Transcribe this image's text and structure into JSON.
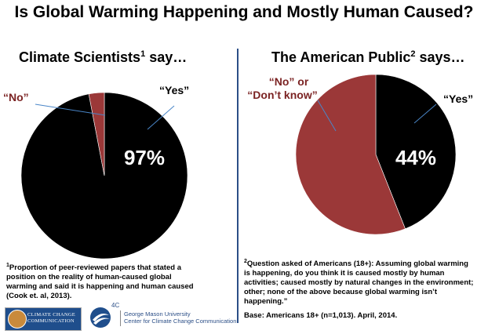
{
  "title": "Is Global Warming Happening and Mostly Human Caused?",
  "left": {
    "heading_pre": "Climate Scientists",
    "heading_sup": "1",
    "heading_post": " say…",
    "label_no": "“No”",
    "label_yes": "“Yes”",
    "value_text": "97%"
  },
  "right": {
    "heading_pre": "The American Public",
    "heading_sup": "2",
    "heading_post": " says…",
    "label_no_1": "“No” or",
    "label_no_2": "“Don’t know”",
    "label_yes": "“Yes”",
    "value_text": "44%"
  },
  "colors": {
    "yes": "#000000",
    "no": "#9b3838",
    "text_no": "#7b2323",
    "pointer": "#4a86c8",
    "divider": "#2c4f87"
  },
  "chart_data": [
    {
      "type": "pie",
      "title": "Climate Scientists say…",
      "slices": [
        {
          "label": "Yes",
          "value": 97
        },
        {
          "label": "No",
          "value": 3
        }
      ]
    },
    {
      "type": "pie",
      "title": "The American Public says…",
      "slices": [
        {
          "label": "Yes",
          "value": 44
        },
        {
          "label": "No or Don't know",
          "value": 56
        }
      ]
    }
  ],
  "footnotes": {
    "note1_sup": "1",
    "note1_lines": [
      "Proportion of peer-reviewed papers that stated a",
      "position on the reality of human-caused global",
      "warming and said it is happening and human caused",
      "(Cook et. al, 2013)."
    ],
    "note2_sup": "2",
    "note2_lines": [
      "Question asked of Americans (18+): Assuming global warming",
      "is happening, do you think it is caused mostly by human",
      "activities; caused mostly by natural changes in the environment;",
      "other; none of the above because global warming isn’t",
      "happening.”"
    ],
    "base": "Base: Americans 18+ (n=1,013). April, 2014."
  },
  "logos": {
    "cccc_line1": "CLIMATE CHANGE",
    "cccc_line2": "COMMUNICATION",
    "fourc": "4C",
    "gmu_line1": "George Mason University",
    "gmu_line2": "Center for Climate Change Communication"
  }
}
